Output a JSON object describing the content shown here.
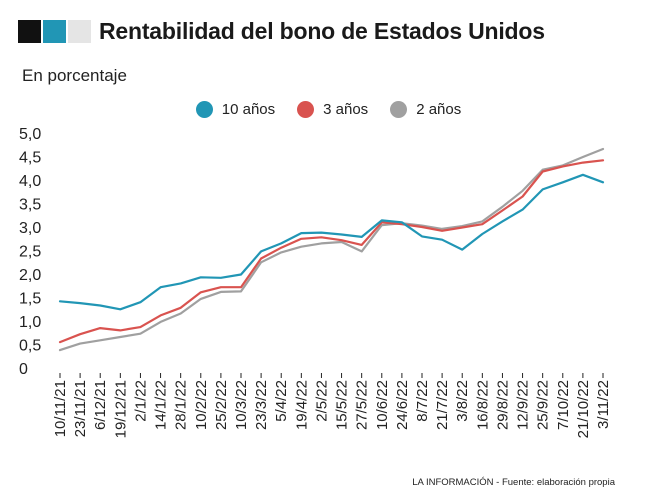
{
  "header": {
    "title": "Rentabilidad del bono de Estados Unidos",
    "subtitle": "En porcentaje",
    "squares": [
      "#111111",
      "#2196b5",
      "#e5e5e5"
    ]
  },
  "footer": {
    "source": "LA INFORMACIÓN - Fuente: elaboración propia"
  },
  "chart_data": {
    "type": "line",
    "title": "Rentabilidad del bono de Estados Unidos",
    "subtitle": "En porcentaje",
    "xlabel": "",
    "ylabel": "",
    "ylim": [
      0,
      5
    ],
    "yticks": [
      "0",
      "0,5",
      "1,0",
      "1,5",
      "2,0",
      "2,5",
      "3,0",
      "3,5",
      "4,0",
      "4,5",
      "5,0"
    ],
    "grid": false,
    "legend_position": "top-center",
    "x_tick_labels": [
      "10/11/21",
      "23/11/21",
      "6/12/21",
      "19/12/21",
      "2/1/22",
      "14/1/22",
      "28/1/22",
      "10/2/22",
      "25/2/22",
      "10/3/22",
      "23/3/22",
      "5/4/22",
      "19/4/22",
      "2/5/22",
      "15/5/22",
      "27/5/22",
      "10/6/22",
      "24/6/22",
      "8/7/22",
      "21/7/22",
      "3/8/22",
      "16/8/22",
      "29/8/22",
      "12/9/22",
      "25/9/22",
      "7/10/22",
      "21/10/22",
      "3/11/22"
    ],
    "series": [
      {
        "name": "10 años",
        "color": "#2196b5",
        "values": [
          1.42,
          1.38,
          1.33,
          1.25,
          1.4,
          1.72,
          1.8,
          1.93,
          1.92,
          1.99,
          2.48,
          2.65,
          2.87,
          2.88,
          2.84,
          2.79,
          3.14,
          3.1,
          2.8,
          2.73,
          2.52,
          2.85,
          3.12,
          3.37,
          3.8,
          3.95,
          4.11,
          3.95
        ]
      },
      {
        "name": "3 años",
        "color": "#d9534f",
        "values": [
          0.55,
          0.72,
          0.85,
          0.8,
          0.87,
          1.12,
          1.28,
          1.61,
          1.72,
          1.72,
          2.33,
          2.56,
          2.75,
          2.78,
          2.72,
          2.62,
          3.1,
          3.06,
          3.0,
          2.92,
          2.99,
          3.06,
          3.35,
          3.65,
          4.18,
          4.29,
          4.37,
          4.42
        ]
      },
      {
        "name": "2 años",
        "color": "#a0a0a0",
        "values": [
          0.38,
          0.52,
          0.59,
          0.66,
          0.73,
          0.98,
          1.16,
          1.47,
          1.62,
          1.63,
          2.25,
          2.46,
          2.58,
          2.65,
          2.68,
          2.48,
          3.04,
          3.08,
          3.03,
          2.96,
          3.02,
          3.12,
          3.43,
          3.77,
          4.22,
          4.31,
          4.49,
          4.66
        ]
      }
    ]
  }
}
